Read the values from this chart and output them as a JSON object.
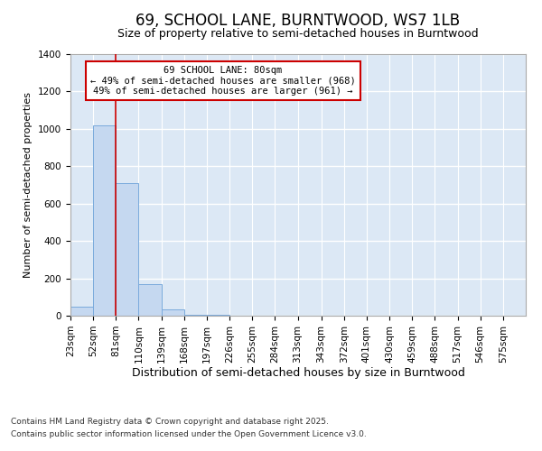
{
  "title_line1": "69, SCHOOL LANE, BURNTWOOD, WS7 1LB",
  "title_line2": "Size of property relative to semi-detached houses in Burntwood",
  "xlabel": "Distribution of semi-detached houses by size in Burntwood",
  "ylabel": "Number of semi-detached properties",
  "bar_color": "#c5d8f0",
  "bar_edge_color": "#7aaadc",
  "background_color": "#dce8f5",
  "grid_color": "#ffffff",
  "annotation_line_color": "#cc0000",
  "annotation_box_edge_color": "#cc0000",
  "property_line_x": 81,
  "bin_edges": [
    23,
    52,
    81,
    110,
    139,
    168,
    197,
    226,
    255,
    284,
    313,
    343,
    372,
    401,
    430,
    459,
    488,
    517,
    546,
    575,
    604
  ],
  "bin_counts": [
    50,
    1020,
    710,
    170,
    35,
    5,
    3,
    2,
    2,
    2,
    1,
    1,
    1,
    1,
    1,
    1,
    0,
    0,
    0,
    0
  ],
  "annotation_line1": "69 SCHOOL LANE: 80sqm",
  "annotation_line2": "← 49% of semi-detached houses are smaller (968)",
  "annotation_line3": "49% of semi-detached houses are larger (961) →",
  "annotation_fontsize": 7.5,
  "ylim": [
    0,
    1400
  ],
  "yticks": [
    0,
    200,
    400,
    600,
    800,
    1000,
    1200,
    1400
  ],
  "footer_line1": "Contains HM Land Registry data © Crown copyright and database right 2025.",
  "footer_line2": "Contains public sector information licensed under the Open Government Licence v3.0.",
  "title_fontsize": 12,
  "subtitle_fontsize": 9,
  "xlabel_fontsize": 9,
  "ylabel_fontsize": 8,
  "tick_fontsize": 7.5
}
